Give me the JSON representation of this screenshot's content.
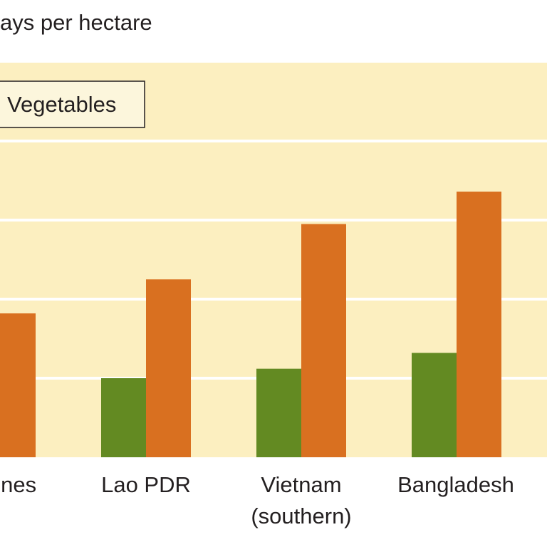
{
  "chart_data": {
    "type": "bar",
    "ylabel": "ays per hectare",
    "categories": [
      "pines",
      "Lao PDR",
      "Vietnam (southern)",
      "Bangladesh"
    ],
    "category_lines": [
      [
        "pines"
      ],
      [
        "Lao PDR"
      ],
      [
        "Vietnam",
        "(southern)"
      ],
      [
        "Bangladesh"
      ]
    ],
    "series": [
      {
        "name": "",
        "color": "#638a22",
        "values": [
          null,
          100,
          112,
          132
        ]
      },
      {
        "name": "Vegetables",
        "color": "#d97020",
        "values": [
          182,
          225,
          295,
          336
        ]
      }
    ],
    "ylim": [
      0,
      500
    ],
    "grid": true,
    "legend": "top-left",
    "colors": {
      "plot_background": "#fcefc0",
      "gridline": "#ffffff",
      "legend_border": "#231f20"
    }
  }
}
